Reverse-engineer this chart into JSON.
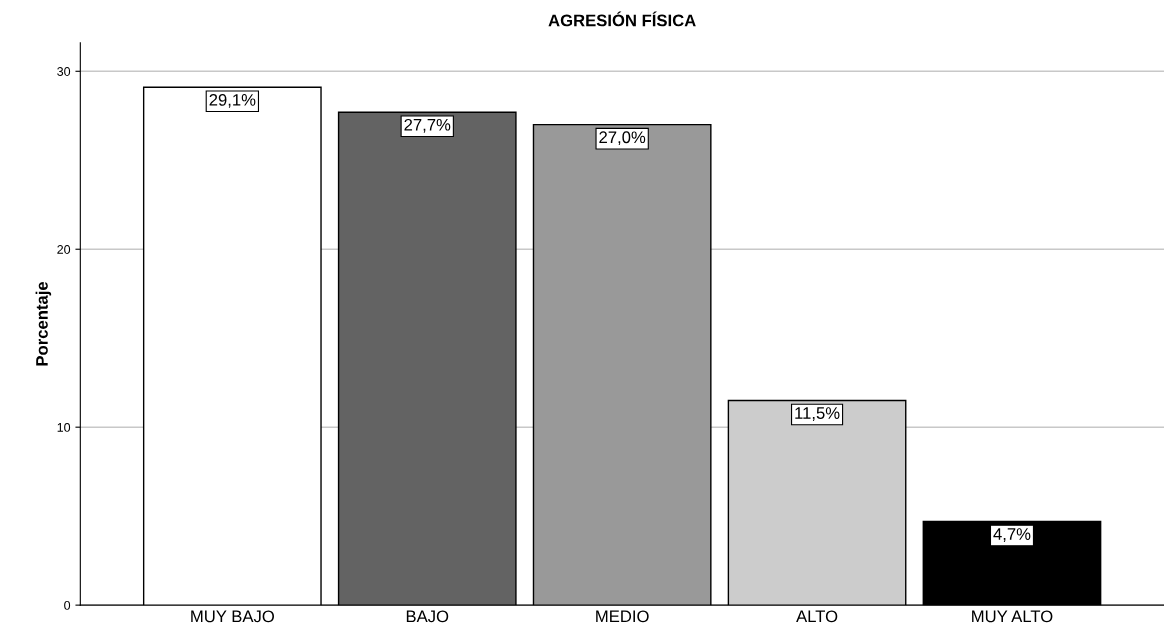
{
  "chart_data": {
    "type": "bar",
    "title": "AGRESIÓN FÍSICA",
    "ylabel": "Porcentaje",
    "categories": [
      "MUY BAJO",
      "BAJO",
      "MEDIO",
      "ALTO",
      "MUY ALTO"
    ],
    "values": [
      29.1,
      27.7,
      27.0,
      11.5,
      4.7
    ],
    "colors": [
      "#ffffff",
      "#636363",
      "#999999",
      "#cccccc",
      "#000000"
    ],
    "value_labels": [
      "29,1%",
      "27,7%",
      "27,0%",
      "11,5%",
      "4,7%"
    ],
    "ylim": [
      0,
      31.6
    ],
    "yticks": [
      0,
      10,
      20,
      30
    ],
    "grid": "y",
    "legend": false
  }
}
